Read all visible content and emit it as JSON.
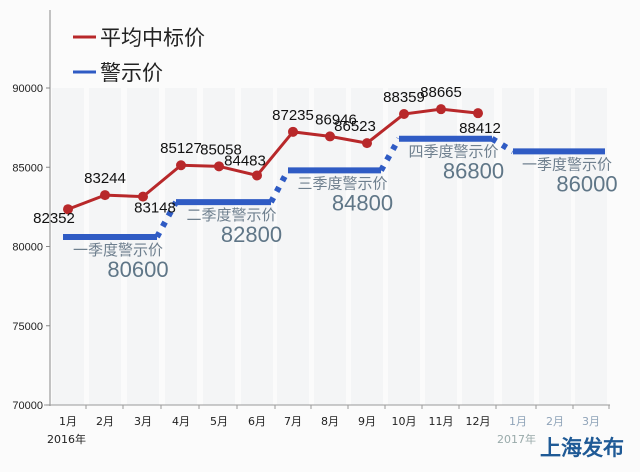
{
  "chart_data": {
    "type": "line",
    "title": "",
    "xlabel": "",
    "ylabel": "",
    "ylim": [
      70000,
      90000
    ],
    "yticks": [
      70000,
      75000,
      80000,
      85000,
      90000
    ],
    "categories": [
      "1月",
      "2月",
      "3月",
      "4月",
      "5月",
      "6月",
      "7月",
      "8月",
      "9月",
      "10月",
      "11月",
      "12月",
      "1月",
      "2月",
      "3月"
    ],
    "year_labels": [
      {
        "label": "2016年",
        "at_index": 0
      },
      {
        "label": "2017年",
        "at_index": 12
      }
    ],
    "legend": {
      "position": "top-left",
      "entries": [
        {
          "name": "平均中标价",
          "color": "#b8282a"
        },
        {
          "name": "警示价",
          "color": "#2f5bc4"
        }
      ]
    },
    "series": [
      {
        "name": "平均中标价",
        "color": "#b8282a",
        "values": [
          82352,
          83244,
          83148,
          85127,
          85058,
          84483,
          87235,
          86946,
          86523,
          88359,
          88665,
          88412,
          null,
          null,
          null
        ]
      },
      {
        "name": "警示价",
        "color": "#2f5bc4",
        "type": "step",
        "segments": [
          {
            "label": "一季度警示价",
            "value": 80600,
            "from_index": 0,
            "to_index": 2
          },
          {
            "label": "二季度警示价",
            "value": 82800,
            "from_index": 3,
            "to_index": 5
          },
          {
            "label": "三季度警示价",
            "value": 84800,
            "from_index": 6,
            "to_index": 8
          },
          {
            "label": "四季度警示价",
            "value": 86800,
            "from_index": 9,
            "to_index": 11
          },
          {
            "label": "一季度警示价",
            "value": 86000,
            "from_index": 12,
            "to_index": 14
          }
        ]
      }
    ],
    "annotations": [
      "上海发布"
    ],
    "grid": false
  },
  "watermark": "上海发布",
  "brand_text": "上海发布"
}
